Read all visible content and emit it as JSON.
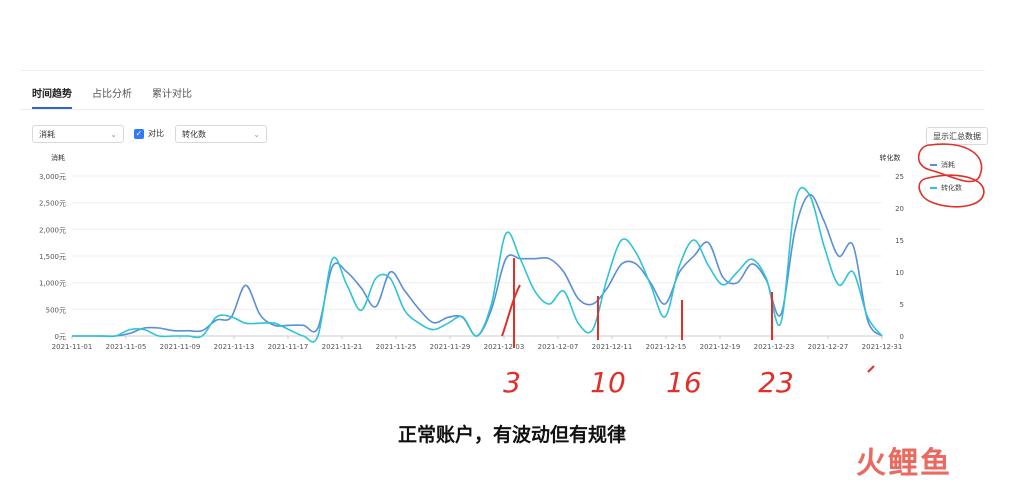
{
  "tabs": [
    {
      "label": "时间趋势"
    },
    {
      "label": "占比分析"
    },
    {
      "label": "累计对比"
    }
  ],
  "controls": {
    "metric_select": "消耗",
    "compare_label": "对比",
    "compare_select": "转化数",
    "summary_button": "显示汇总数据"
  },
  "chart_data": {
    "type": "line",
    "left_axis_label": "消耗",
    "right_axis_label": "转化数",
    "left_ticks": [
      "0元",
      "500元",
      "1,000元",
      "1,500元",
      "2,000元",
      "2,500元",
      "3,000元"
    ],
    "right_ticks": [
      "0",
      "5",
      "10",
      "15",
      "20",
      "25"
    ],
    "ylim_left": [
      0,
      3000
    ],
    "ylim_right": [
      0,
      25
    ],
    "x_ticks": [
      "2021-11-01",
      "2021-11-05",
      "2021-11-09",
      "2021-11-13",
      "2021-11-17",
      "2021-11-21",
      "2021-11-25",
      "2021-11-29",
      "2021-12-03",
      "2021-12-07",
      "2021-12-11",
      "2021-12-15",
      "2021-12-19",
      "2021-12-23",
      "2021-12-27",
      "2021-12-31"
    ],
    "series": [
      {
        "name": "消耗",
        "axis": "left",
        "color": "#5b8ed6",
        "values": [
          0,
          0,
          0,
          0,
          50,
          150,
          150,
          100,
          100,
          100,
          300,
          350,
          950,
          400,
          200,
          200,
          200,
          150,
          1300,
          1200,
          900,
          550,
          1200,
          850,
          500,
          250,
          350,
          350,
          0,
          500,
          1450,
          1450,
          1450,
          1450,
          1200,
          700,
          600,
          900,
          1350,
          1350,
          1000,
          600,
          1200,
          1500,
          1750,
          1100,
          1000,
          1350,
          1050,
          400,
          2000,
          2650,
          2150,
          1500,
          1700,
          300,
          0
        ]
      },
      {
        "name": "转化数",
        "axis": "right",
        "color": "#2ec4d6",
        "values": [
          0,
          0,
          0,
          0,
          1,
          1,
          0,
          0,
          0,
          0,
          3,
          3,
          2,
          2,
          2,
          1,
          0,
          0,
          12,
          8,
          4,
          9,
          9,
          4,
          2,
          1,
          2,
          3,
          0,
          5,
          16,
          12,
          7,
          5,
          7,
          2,
          1,
          9,
          15,
          13,
          8,
          3,
          11,
          15,
          11,
          8,
          10,
          12,
          9,
          2,
          21,
          22,
          14,
          8,
          10,
          3,
          0
        ]
      }
    ]
  },
  "annotations": [
    "3",
    "10",
    "16",
    "23"
  ],
  "caption": "正常账户，有波动但有规律",
  "watermark": "火鲤鱼"
}
